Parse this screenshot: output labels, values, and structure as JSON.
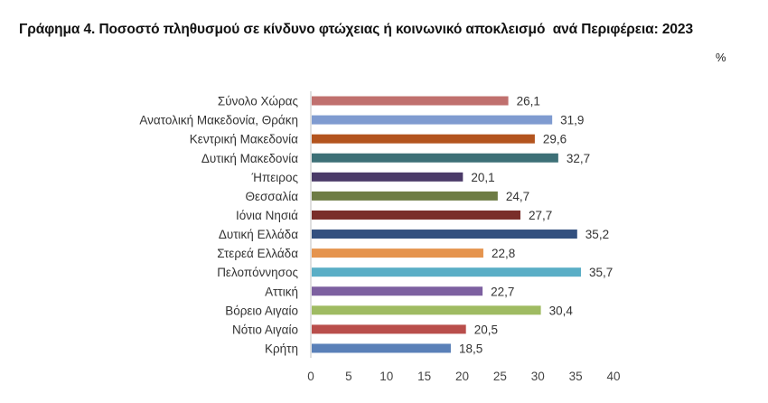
{
  "title": "Γράφημα 4. Ποσοστό πληθυσμού σε κίνδυνο φτώχειας ή κοινωνικό αποκλεισμό  ανά Περιφέρεια: 2023",
  "unit_label": "%",
  "chart_data": {
    "type": "bar",
    "orientation": "horizontal",
    "categories": [
      "Σύνολο Χώρας",
      "Ανατολική Μακεδονία, Θράκη",
      "Κεντρική Μακεδονία",
      "Δυτική Μακεδονία",
      "Ήπειρος",
      "Θεσσαλία",
      "Ιόνια Νησιά",
      "Δυτική Ελλάδα",
      "Στερεά Ελλάδα",
      "Πελοπόννησος",
      "Αττική",
      "Βόρειο Αιγαίο",
      "Νότιο Αιγαίο",
      "Κρήτη"
    ],
    "values": [
      26.1,
      31.9,
      29.6,
      32.7,
      20.1,
      24.7,
      27.7,
      35.2,
      22.8,
      35.7,
      22.7,
      30.4,
      20.5,
      18.5
    ],
    "value_labels": [
      "26,1",
      "31,9",
      "29,6",
      "32,7",
      "20,1",
      "24,7",
      "27,7",
      "35,2",
      "22,8",
      "35,7",
      "22,7",
      "30,4",
      "20,5",
      "18,5"
    ],
    "colors": [
      "#c0706e",
      "#7f9bd0",
      "#b3541e",
      "#3d7077",
      "#4a3a68",
      "#6e7c44",
      "#7a2e2a",
      "#33507f",
      "#e5944e",
      "#5aaec6",
      "#7d60a0",
      "#9fbb62",
      "#b94e4b",
      "#5a80b8"
    ],
    "x_ticks": [
      0,
      5,
      10,
      15,
      20,
      25,
      30,
      35,
      40
    ],
    "xlim": [
      0,
      40
    ],
    "xlabel": "",
    "ylabel": "",
    "grid": false,
    "legend": "none"
  }
}
